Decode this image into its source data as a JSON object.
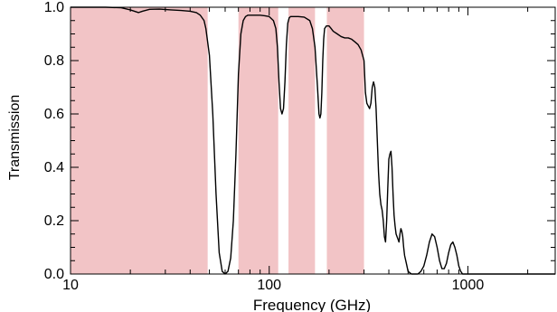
{
  "chart_data": {
    "type": "line",
    "title": "",
    "xlabel": "Frequency (GHz)",
    "ylabel": "Transmission",
    "xscale": "log",
    "xlim": [
      10,
      2750
    ],
    "ylim": [
      0,
      1.0
    ],
    "xticks": [
      10,
      100,
      1000
    ],
    "xtick_labels": [
      "10",
      "100",
      "1000"
    ],
    "yticks": [
      0,
      0.2,
      0.4,
      0.6,
      0.8,
      1.0
    ],
    "ytick_labels": [
      "0.0",
      "0.2",
      "0.4",
      "0.6",
      "0.8",
      "1.0"
    ],
    "grid": false,
    "colors": {
      "line": "#000000",
      "band": "#f2c4c6"
    },
    "bands": [
      {
        "xmin": 10,
        "xmax": 49
      },
      {
        "xmin": 70,
        "xmax": 111
      },
      {
        "xmin": 125,
        "xmax": 170
      },
      {
        "xmin": 195,
        "xmax": 300
      }
    ],
    "series": [
      {
        "x": [
          10,
          12,
          15,
          18,
          20,
          22,
          23,
          25,
          28,
          32,
          36,
          40,
          43,
          45,
          47,
          48,
          50,
          52,
          54,
          56,
          58,
          60,
          62,
          64,
          66,
          68,
          70,
          72,
          74,
          76,
          78,
          80,
          85,
          90,
          95,
          100,
          105,
          108,
          110,
          112,
          114,
          116,
          118,
          120,
          122,
          124,
          126,
          128,
          132,
          140,
          150,
          160,
          165,
          170,
          175,
          178,
          180,
          182,
          184,
          186,
          188,
          190,
          194,
          200,
          205,
          210,
          220,
          230,
          240,
          250,
          260,
          270,
          280,
          290,
          300,
          305,
          310,
          315,
          320,
          325,
          330,
          335,
          340,
          345,
          350,
          355,
          360,
          365,
          370,
          375,
          380,
          385,
          390,
          395,
          400,
          405,
          410,
          415,
          420,
          425,
          430,
          435,
          440,
          445,
          450,
          455,
          460,
          465,
          470,
          475,
          480,
          490,
          500,
          520,
          540,
          560,
          580,
          600,
          620,
          640,
          660,
          680,
          700,
          720,
          740,
          760,
          780,
          800,
          820,
          840,
          860,
          880,
          900,
          920,
          940,
          960,
          1000,
          1100,
          1200,
          1500,
          2000,
          2750
        ],
        "y": [
          1.0,
          1.0,
          1.0,
          0.998,
          0.99,
          0.98,
          0.985,
          0.992,
          0.993,
          0.99,
          0.988,
          0.985,
          0.98,
          0.97,
          0.95,
          0.92,
          0.82,
          0.6,
          0.3,
          0.08,
          0.01,
          0.0,
          0.01,
          0.06,
          0.2,
          0.45,
          0.75,
          0.9,
          0.95,
          0.965,
          0.97,
          0.97,
          0.97,
          0.97,
          0.968,
          0.965,
          0.95,
          0.92,
          0.85,
          0.72,
          0.62,
          0.6,
          0.62,
          0.72,
          0.86,
          0.94,
          0.96,
          0.965,
          0.965,
          0.965,
          0.963,
          0.95,
          0.92,
          0.85,
          0.7,
          0.6,
          0.585,
          0.6,
          0.68,
          0.8,
          0.88,
          0.92,
          0.93,
          0.93,
          0.92,
          0.91,
          0.9,
          0.89,
          0.885,
          0.885,
          0.88,
          0.87,
          0.86,
          0.84,
          0.8,
          0.68,
          0.64,
          0.63,
          0.62,
          0.64,
          0.7,
          0.72,
          0.7,
          0.62,
          0.5,
          0.38,
          0.3,
          0.26,
          0.24,
          0.2,
          0.14,
          0.12,
          0.2,
          0.32,
          0.43,
          0.45,
          0.46,
          0.4,
          0.3,
          0.22,
          0.18,
          0.15,
          0.14,
          0.13,
          0.12,
          0.15,
          0.17,
          0.16,
          0.14,
          0.1,
          0.07,
          0.04,
          0.01,
          0.0,
          0.0,
          0.0,
          0.01,
          0.03,
          0.07,
          0.12,
          0.15,
          0.14,
          0.1,
          0.05,
          0.02,
          0.02,
          0.04,
          0.08,
          0.11,
          0.12,
          0.1,
          0.07,
          0.03,
          0.01,
          0.0,
          0.0,
          0.0,
          0.0,
          0.0,
          0.0,
          0.0,
          0.0
        ]
      }
    ]
  }
}
